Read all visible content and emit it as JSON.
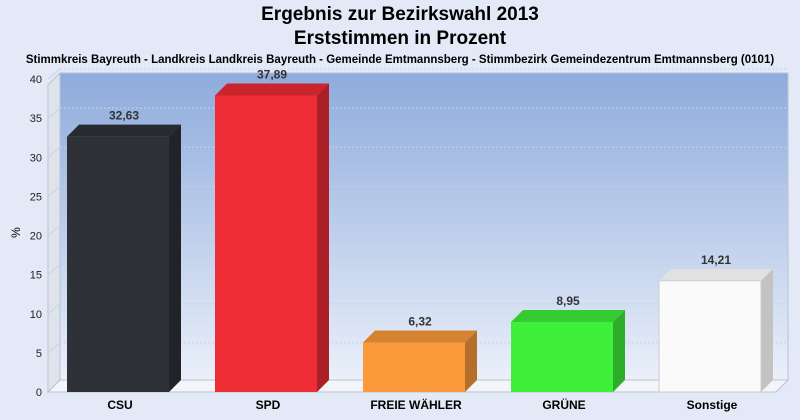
{
  "chart_data": {
    "type": "bar",
    "title": "Ergebnis zur Bezirkswahl 2013",
    "subtitle": "Erststimmen in Prozent",
    "caption": "Stimmkreis Bayreuth - Landkreis Landkreis Bayreuth - Gemeinde Emtmannsberg - Stimmbezirk Gemeindezentrum Emtmannsberg (0101)",
    "ylabel": "%",
    "xlabel": "",
    "ylim": [
      0,
      40
    ],
    "yticks": [
      "0",
      "5",
      "10",
      "15",
      "20",
      "25",
      "30",
      "35",
      "40"
    ],
    "grid": true,
    "categories": [
      "CSU",
      "SPD",
      "FREIE WÄHLER",
      "GRÜNE",
      "Sonstige"
    ],
    "values": [
      32.63,
      37.89,
      6.32,
      8.95,
      14.21
    ],
    "value_labels": [
      "32,63",
      "37,89",
      "6,32",
      "8,95",
      "14,21"
    ],
    "colors": [
      "#2e3138",
      "#ee2c35",
      "#fb9a3a",
      "#3ff03a",
      "#fafafa"
    ]
  }
}
